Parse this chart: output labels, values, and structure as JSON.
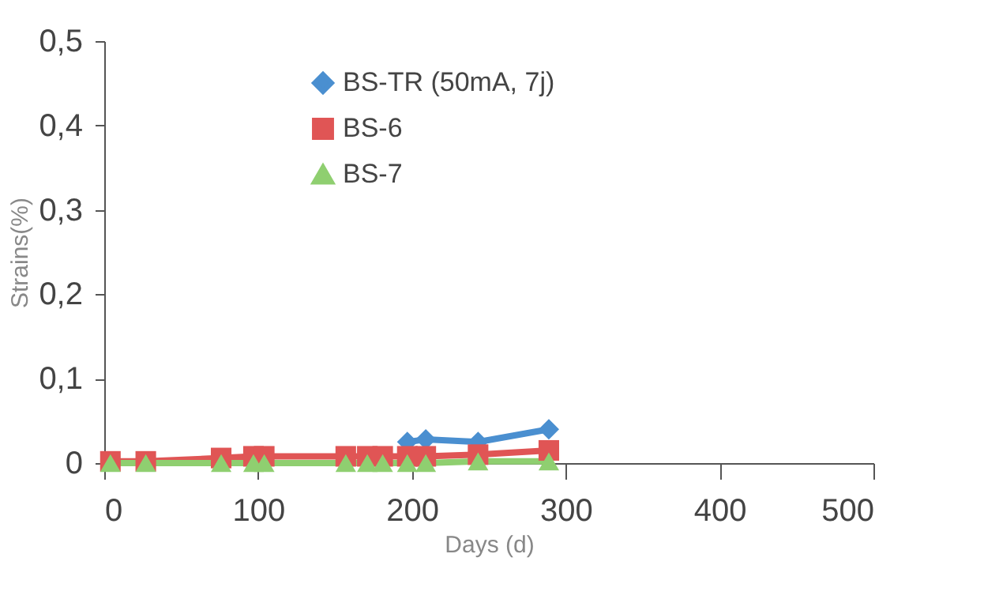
{
  "chart_data": {
    "type": "line",
    "xlabel": "Days (d)",
    "ylabel": "Strains(%)",
    "x": [
      4,
      27,
      76,
      97,
      104,
      157,
      171,
      181,
      197,
      209,
      243,
      289
    ],
    "series": [
      {
        "name": "BS-TR (50mA, 7j)",
        "color": "#4a8fd0",
        "marker": "diamond",
        "values": [
          null,
          null,
          null,
          null,
          null,
          null,
          null,
          null,
          0.025,
          0.028,
          0.025,
          0.04
        ]
      },
      {
        "name": "BS-6",
        "color": "#e05555",
        "marker": "square",
        "values": [
          0.002,
          0.002,
          0.006,
          0.008,
          0.008,
          0.008,
          0.008,
          0.008,
          0.008,
          0.008,
          0.01,
          0.015
        ]
      },
      {
        "name": "BS-7",
        "color": "#8fcf70",
        "marker": "triangle",
        "values": [
          0,
          0,
          0,
          0,
          0,
          0,
          0,
          0,
          0,
          0,
          0.002,
          0.002
        ]
      }
    ],
    "xlim": [
      0,
      500
    ],
    "xticks": [
      0,
      100,
      200,
      300,
      400,
      500
    ],
    "ylim": [
      0,
      0.5
    ],
    "yticks": [
      {
        "value": 0,
        "label": "0"
      },
      {
        "value": 0.1,
        "label": "0,1"
      },
      {
        "value": 0.2,
        "label": "0,2"
      },
      {
        "value": 0.3,
        "label": "0,3"
      },
      {
        "value": 0.4,
        "label": "0,4"
      },
      {
        "value": 0.5,
        "label": "0,5"
      }
    ],
    "grid": false,
    "legend": "top"
  }
}
